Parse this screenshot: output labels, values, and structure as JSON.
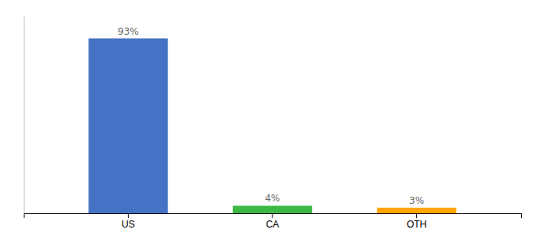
{
  "chart_data": {
    "type": "bar",
    "categories": [
      "US",
      "CA",
      "OTH"
    ],
    "values": [
      93,
      4,
      3
    ],
    "value_labels": [
      "93%",
      "4%",
      "3%"
    ],
    "colors": [
      "#4472C4",
      "#3CB843",
      "#FFA500"
    ],
    "ylim": [
      0,
      105
    ],
    "data_labels": true,
    "tick_labels": "x",
    "grid": false
  }
}
